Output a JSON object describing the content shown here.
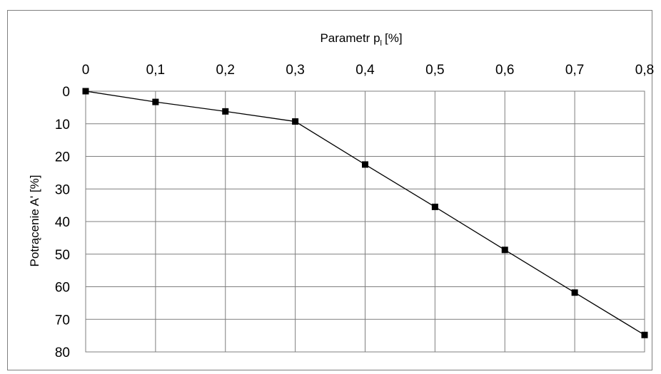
{
  "chart_data": {
    "type": "line",
    "x_axis_position": "top",
    "y_axis_inverted": true,
    "xlabel": "Parametr p",
    "xlabel_subscript": "l",
    "xlabel_unit": "[%]",
    "ylabel": "Potrącenie A' [%]",
    "xlim": [
      0,
      0.8
    ],
    "ylim": [
      0,
      80
    ],
    "x_ticks": [
      0,
      0.1,
      0.2,
      0.3,
      0.4,
      0.5,
      0.6,
      0.7,
      0.8
    ],
    "x_tick_labels": [
      "0",
      "0,1",
      "0,2",
      "0,3",
      "0,4",
      "0,5",
      "0,6",
      "0,7",
      "0,8"
    ],
    "y_ticks": [
      0,
      10,
      20,
      30,
      40,
      50,
      60,
      70,
      80
    ],
    "y_tick_labels": [
      "0",
      "10",
      "20",
      "30",
      "40",
      "50",
      "60",
      "70",
      "80"
    ],
    "grid": true,
    "legend": "none",
    "series": [
      {
        "marker": "square",
        "color": "#000000",
        "x": [
          0,
          0.1,
          0.2,
          0.3,
          0.4,
          0.5,
          0.6,
          0.7,
          0.8
        ],
        "y": [
          0,
          3.3,
          6.2,
          9.3,
          22.5,
          35.5,
          48.7,
          61.8,
          74.8
        ]
      }
    ]
  }
}
